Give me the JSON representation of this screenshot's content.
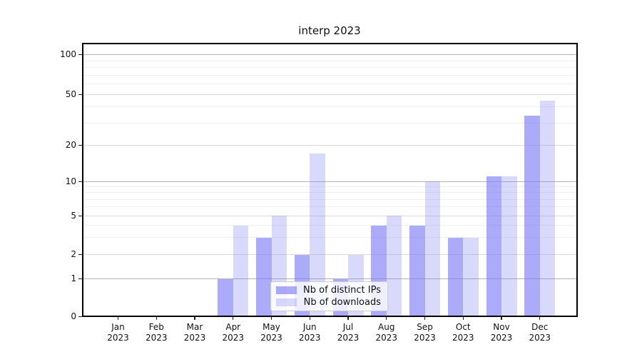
{
  "chart_data": {
    "type": "bar",
    "title": "interp 2023",
    "categories": [
      "Jan",
      "Feb",
      "Mar",
      "Apr",
      "May",
      "Jun",
      "Jul",
      "Aug",
      "Sep",
      "Oct",
      "Nov",
      "Dec"
    ],
    "year_label": "2023",
    "series": [
      {
        "name": "Nb of distinct IPs",
        "color": "rgba(120,120,245,0.62)",
        "values": [
          0,
          0,
          0,
          1,
          3,
          2,
          1,
          4,
          4,
          3,
          11,
          34
        ]
      },
      {
        "name": "Nb of downloads",
        "color": "rgba(120,120,245,0.28)",
        "values": [
          0,
          0,
          0,
          4,
          5,
          17,
          2,
          5,
          10,
          3,
          11,
          45
        ]
      }
    ],
    "xlabel": "",
    "ylabel": "",
    "y_ticks": [
      0,
      1,
      2,
      5,
      10,
      20,
      50,
      100
    ],
    "y_minor_gridlines": [
      3,
      4,
      6,
      7,
      8,
      9,
      30,
      40,
      60,
      70,
      80,
      90
    ],
    "y_scale": "log-like (symlog with 0 baseline), non-uniform decade spacing",
    "y_scale_anchors": {
      "0": 0,
      "1": 0.1377,
      "2": 0.2263,
      "5": 0.3682,
      "10": 0.4934,
      "20": 0.6263,
      "50": 0.8104,
      "100": 0.9565
    },
    "ylim": [
      0,
      130
    ],
    "grid": true,
    "legend_position": "lower center inside plot",
    "colors": {
      "gridline_pow10": "#b4b4b4",
      "gridline_labeled": "#dcdcdc",
      "gridline_minor": "#f0f0f0",
      "spine": "#000000",
      "background": "#ffffff"
    }
  }
}
